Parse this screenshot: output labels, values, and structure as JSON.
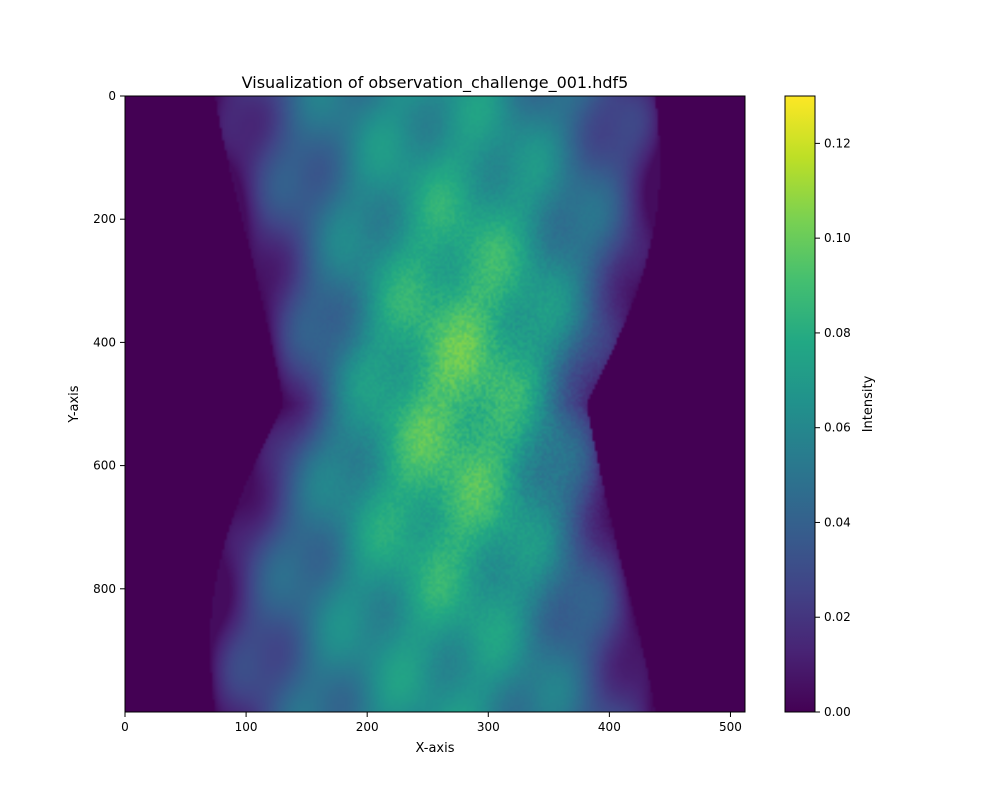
{
  "chart_data": {
    "type": "heatmap",
    "title": "Visualization of observation_challenge_001.hdf5",
    "xlabel": "X-axis",
    "ylabel": "Y-axis",
    "colorbar_label": "Intensity",
    "colormap": "viridis",
    "xlim": [
      0,
      512
    ],
    "ylim": [
      1000,
      0
    ],
    "y_axis_inverted": true,
    "clim": [
      0.0,
      0.13
    ],
    "x_ticks": [
      0,
      100,
      200,
      300,
      400,
      500
    ],
    "y_ticks": [
      0,
      200,
      400,
      600,
      800
    ],
    "colorbar_ticks": [
      "0.00",
      "0.02",
      "0.04",
      "0.06",
      "0.08",
      "0.10",
      "0.12"
    ],
    "colorbar_tick_values": [
      0.0,
      0.02,
      0.04,
      0.06,
      0.08,
      0.1,
      0.12
    ],
    "description_structure": {
      "center_x": 256,
      "object_edge_left_at_y0": 75,
      "object_edge_right_at_y0": 438,
      "narrowest_row_y": 500,
      "left_edge_at_narrowest": 175,
      "right_edge_at_narrowest": 425,
      "peak_intensity_approx": 0.1,
      "background_intensity": 0.0
    },
    "grid": false
  }
}
